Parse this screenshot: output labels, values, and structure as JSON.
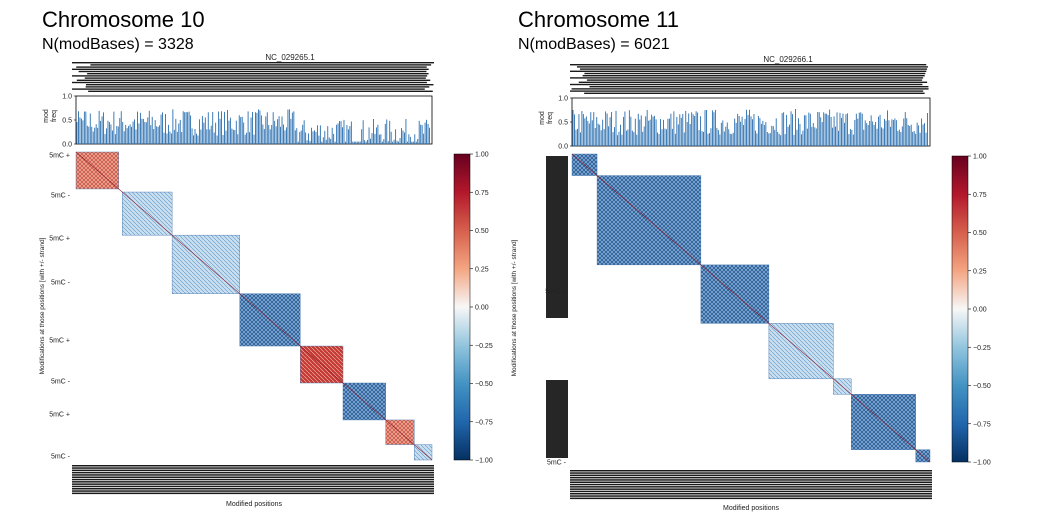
{
  "panels": [
    {
      "title": "Chromosome 10",
      "subtitle": "N(modBases) = 3328",
      "contig": "NC_029265.1",
      "freq_ylabel": "mod\nfreq",
      "freq_ticks": [
        "1.0",
        "0.5",
        "0.0"
      ],
      "heatmap_ylabel": "Modifications at those positions [with +/- strand]",
      "xlabel": "Modified positions",
      "row_labels": [
        "5mC +",
        "5mC -",
        "5mC +",
        "5mC -",
        "5mC +",
        "5mC -",
        "5mC +",
        "5mC -",
        "5mC +"
      ],
      "colorbar_ticks": [
        "1.00",
        "0.75",
        "0.50",
        "0.25",
        "0.00",
        "−0.25",
        "−0.50",
        "−0.75",
        "−1.00"
      ]
    },
    {
      "title": "Chromosome 11",
      "subtitle": "N(modBases) = 6021",
      "contig": "NC_029266.1",
      "freq_ylabel": "mod\nfreq",
      "freq_ticks": [
        "1.0",
        "0.5",
        "0.0"
      ],
      "heatmap_ylabel": "Modifications at those positions [with +/- strand]",
      "xlabel": "Modified positions",
      "row_labels": [
        "5mC +",
        "5mC -"
      ],
      "colorbar_ticks": [
        "1.00",
        "0.75",
        "0.50",
        "0.25",
        "0.00",
        "−0.25",
        "−0.50",
        "−0.75",
        "−1.00"
      ]
    }
  ],
  "chart_data": [
    {
      "type": "heatmap",
      "title": "Chromosome 10",
      "subtitle": "N(modBases) = 3328",
      "xlabel": "Modified positions",
      "ylabel": "Modifications at those positions [with +/- strand]",
      "color_scale": {
        "min": -1.0,
        "max": 1.0,
        "colormap": "RdBu_r"
      },
      "blocks": [
        {
          "label": "block-1",
          "start": 0.0,
          "end": 0.12,
          "mean_corr": 0.55
        },
        {
          "label": "block-2",
          "start": 0.13,
          "end": 0.27,
          "mean_corr": -0.1
        },
        {
          "label": "block-3",
          "start": 0.27,
          "end": 0.46,
          "mean_corr": -0.35
        },
        {
          "label": "block-4",
          "start": 0.46,
          "end": 0.63,
          "mean_corr": -0.7
        },
        {
          "label": "block-5",
          "start": 0.63,
          "end": 0.75,
          "mean_corr": 0.8
        },
        {
          "label": "block-6",
          "start": 0.75,
          "end": 0.87,
          "mean_corr": -0.65
        },
        {
          "label": "block-7",
          "start": 0.87,
          "end": 0.95,
          "mean_corr": 0.5
        },
        {
          "label": "block-8",
          "start": 0.95,
          "end": 1.0,
          "mean_corr": 0.0
        }
      ],
      "mod_freq": {
        "ylim": [
          0.0,
          1.0
        ]
      }
    },
    {
      "type": "heatmap",
      "title": "Chromosome 11",
      "subtitle": "N(modBases) = 6021",
      "xlabel": "Modified positions",
      "ylabel": "Modifications at those positions [with +/- strand]",
      "color_scale": {
        "min": -1.0,
        "max": 1.0,
        "colormap": "RdBu_r"
      },
      "blocks": [
        {
          "label": "block-1",
          "start": 0.0,
          "end": 0.07,
          "mean_corr": -0.6
        },
        {
          "label": "block-2",
          "start": 0.07,
          "end": 0.36,
          "mean_corr": -0.75
        },
        {
          "label": "block-3",
          "start": 0.36,
          "end": 0.55,
          "mean_corr": -0.8
        },
        {
          "label": "block-4",
          "start": 0.55,
          "end": 0.73,
          "mean_corr": -0.2
        },
        {
          "label": "block-5",
          "start": 0.73,
          "end": 0.78,
          "mean_corr": -0.5
        },
        {
          "label": "block-6",
          "start": 0.78,
          "end": 0.96,
          "mean_corr": -0.75
        },
        {
          "label": "block-7",
          "start": 0.96,
          "end": 1.0,
          "mean_corr": -0.6
        }
      ],
      "mod_freq": {
        "ylim": [
          0.0,
          1.0
        ]
      }
    }
  ]
}
